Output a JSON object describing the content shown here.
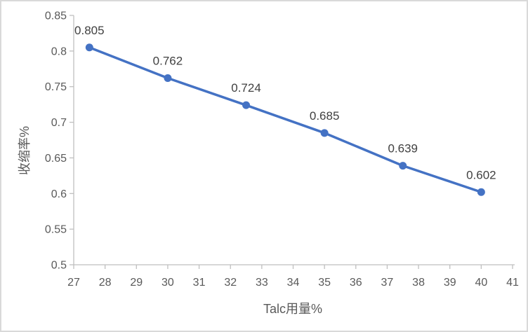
{
  "chart_data": {
    "type": "line",
    "title": "",
    "xlabel": "Talc用量%",
    "ylabel": "收缩率%",
    "xlim": [
      27,
      41
    ],
    "ylim": [
      0.5,
      0.85
    ],
    "xticks": [
      27,
      28,
      29,
      30,
      31,
      32,
      33,
      34,
      35,
      36,
      37,
      38,
      39,
      40,
      41
    ],
    "xtick_labels": [
      "27",
      "28",
      "29",
      "30",
      "31",
      "32",
      "33",
      "34",
      "35",
      "36",
      "37",
      "38",
      "39",
      "40",
      "41"
    ],
    "yticks": [
      0.5,
      0.55,
      0.6,
      0.65,
      0.7,
      0.75,
      0.8,
      0.85
    ],
    "ytick_labels": [
      "0.5",
      "0.55",
      "0.6",
      "0.65",
      "0.7",
      "0.75",
      "0.8",
      "0.85"
    ],
    "grid": false,
    "legend": "none",
    "marker": "circle",
    "series": [
      {
        "name": "收缩率",
        "x": [
          27.5,
          30,
          32.5,
          35,
          37.5,
          40
        ],
        "values": [
          0.805,
          0.762,
          0.724,
          0.685,
          0.639,
          0.602
        ],
        "point_labels": [
          "0.805",
          "0.762",
          "0.724",
          "0.685",
          "0.639",
          "0.602"
        ],
        "color": "#4472C4"
      }
    ]
  },
  "style": {
    "line_color": "#4472C4",
    "axis_color": "#BFBFBF",
    "tick_label_color": "#595959",
    "axis_title_color": "#595959",
    "data_label_color": "#404040",
    "background": "#FFFFFF",
    "border_color": "#D9D9D9"
  }
}
